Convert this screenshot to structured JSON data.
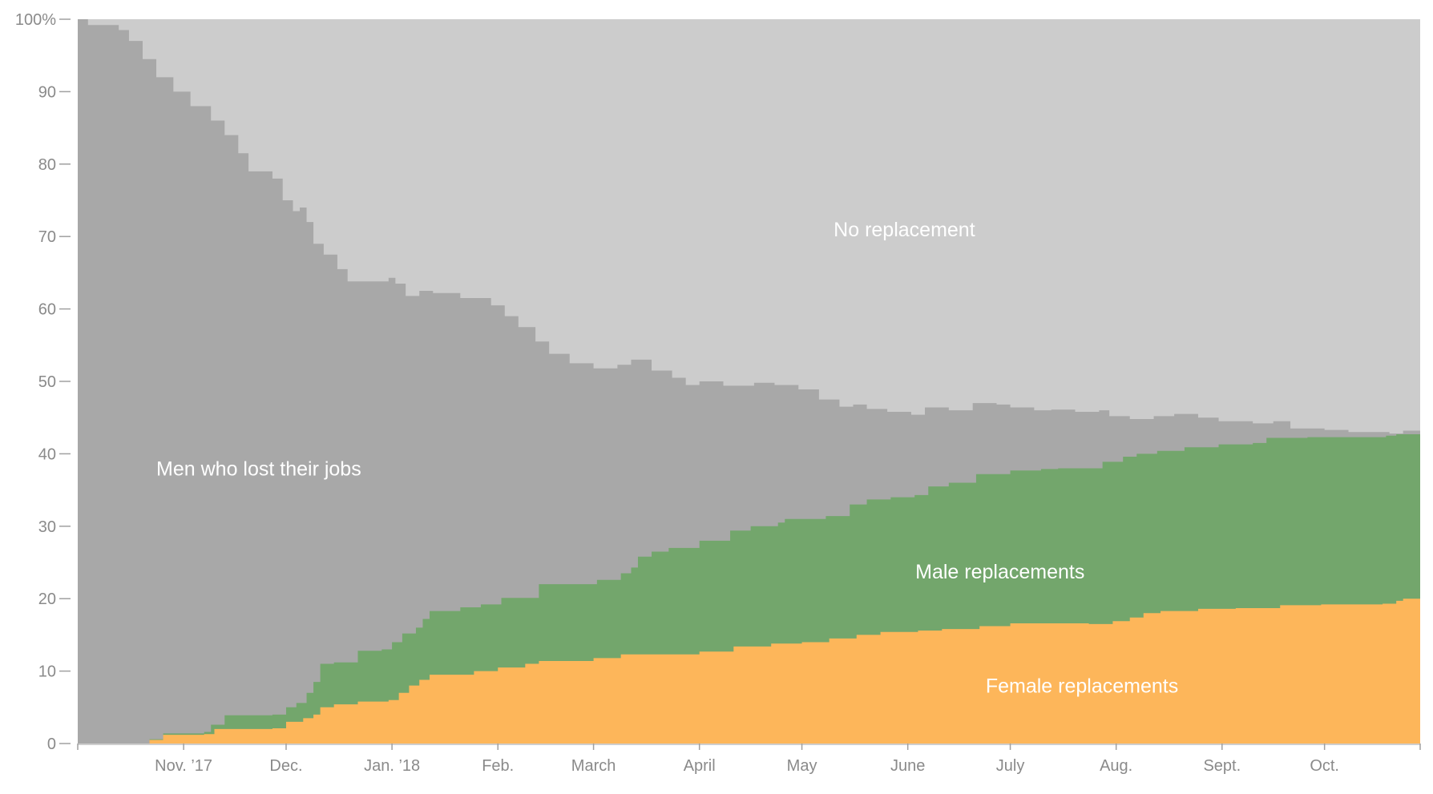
{
  "chart_data": {
    "type": "area",
    "stacked": true,
    "normalized_percent": true,
    "title": "",
    "xlabel": "",
    "ylabel": "",
    "ylim": [
      0,
      100
    ],
    "x_range": [
      "2017-10-01",
      "2018-10-29"
    ],
    "y_ticks": [
      0,
      10,
      20,
      30,
      40,
      50,
      60,
      70,
      80,
      90,
      100
    ],
    "y_tick_labels": [
      "0",
      "10",
      "20",
      "30",
      "40",
      "50",
      "60",
      "70",
      "80",
      "90",
      "100%"
    ],
    "x_ticks": [
      {
        "date": "2017-11-01",
        "label": "Nov. ’17"
      },
      {
        "date": "2017-12-01",
        "label": "Dec."
      },
      {
        "date": "2018-01-01",
        "label": "Jan. ’18"
      },
      {
        "date": "2018-02-01",
        "label": "Feb."
      },
      {
        "date": "2018-03-01",
        "label": "March"
      },
      {
        "date": "2018-04-01",
        "label": "April"
      },
      {
        "date": "2018-05-01",
        "label": "May"
      },
      {
        "date": "2018-06-01",
        "label": "June"
      },
      {
        "date": "2018-07-01",
        "label": "July"
      },
      {
        "date": "2018-08-01",
        "label": "Aug."
      },
      {
        "date": "2018-09-01",
        "label": "Sept."
      },
      {
        "date": "2018-10-01",
        "label": "Oct."
      }
    ],
    "series": [
      {
        "name": "Female replacements",
        "color": "#fdb65a",
        "points": [
          [
            "2017-10-01",
            0
          ],
          [
            "2017-10-15",
            0
          ],
          [
            "2017-10-22",
            0.5
          ],
          [
            "2017-10-26",
            1.2
          ],
          [
            "2017-11-07",
            1.3
          ],
          [
            "2017-11-10",
            2.0
          ],
          [
            "2017-11-27",
            2.1
          ],
          [
            "2017-12-01",
            3.0
          ],
          [
            "2017-12-06",
            3.5
          ],
          [
            "2017-12-09",
            4.0
          ],
          [
            "2017-12-11",
            5.0
          ],
          [
            "2017-12-15",
            5.4
          ],
          [
            "2017-12-22",
            5.8
          ],
          [
            "2017-12-31",
            6.0
          ],
          [
            "2018-01-03",
            7.0
          ],
          [
            "2018-01-06",
            8.0
          ],
          [
            "2018-01-09",
            8.8
          ],
          [
            "2018-01-12",
            9.5
          ],
          [
            "2018-01-25",
            10.0
          ],
          [
            "2018-02-01",
            10.5
          ],
          [
            "2018-02-09",
            11.0
          ],
          [
            "2018-02-13",
            11.4
          ],
          [
            "2018-03-01",
            11.8
          ],
          [
            "2018-03-09",
            12.3
          ],
          [
            "2018-04-01",
            12.7
          ],
          [
            "2018-04-11",
            13.4
          ],
          [
            "2018-04-22",
            13.8
          ],
          [
            "2018-05-01",
            14.0
          ],
          [
            "2018-05-09",
            14.5
          ],
          [
            "2018-05-17",
            15.0
          ],
          [
            "2018-05-24",
            15.4
          ],
          [
            "2018-06-04",
            15.6
          ],
          [
            "2018-06-11",
            15.8
          ],
          [
            "2018-06-22",
            16.2
          ],
          [
            "2018-07-01",
            16.6
          ],
          [
            "2018-07-10",
            16.6
          ],
          [
            "2018-07-24",
            16.5
          ],
          [
            "2018-07-31",
            16.9
          ],
          [
            "2018-08-05",
            17.4
          ],
          [
            "2018-08-09",
            18.0
          ],
          [
            "2018-08-14",
            18.3
          ],
          [
            "2018-08-25",
            18.6
          ],
          [
            "2018-09-05",
            18.7
          ],
          [
            "2018-09-18",
            19.1
          ],
          [
            "2018-09-30",
            19.2
          ],
          [
            "2018-10-18",
            19.3
          ],
          [
            "2018-10-22",
            19.7
          ],
          [
            "2018-10-24",
            20.0
          ],
          [
            "2018-10-29",
            20.0
          ]
        ]
      },
      {
        "name": "Male replacements",
        "color": "#73a66c",
        "points": [
          [
            "2017-10-01",
            0
          ],
          [
            "2017-10-15",
            0
          ],
          [
            "2017-10-22",
            0.6
          ],
          [
            "2017-10-26",
            1.4
          ],
          [
            "2017-11-07",
            1.6
          ],
          [
            "2017-11-09",
            2.6
          ],
          [
            "2017-11-13",
            3.9
          ],
          [
            "2017-11-27",
            4.0
          ],
          [
            "2017-12-01",
            5.0
          ],
          [
            "2017-12-04",
            5.6
          ],
          [
            "2017-12-07",
            7.0
          ],
          [
            "2017-12-09",
            8.5
          ],
          [
            "2017-12-11",
            11.0
          ],
          [
            "2017-12-15",
            11.2
          ],
          [
            "2017-12-22",
            12.8
          ],
          [
            "2017-12-29",
            13.0
          ],
          [
            "2018-01-01",
            14.0
          ],
          [
            "2018-01-04",
            15.2
          ],
          [
            "2018-01-08",
            16.0
          ],
          [
            "2018-01-10",
            17.2
          ],
          [
            "2018-01-12",
            18.3
          ],
          [
            "2018-01-21",
            18.8
          ],
          [
            "2018-01-27",
            19.2
          ],
          [
            "2018-02-02",
            20.1
          ],
          [
            "2018-02-13",
            22.0
          ],
          [
            "2018-02-22",
            22.0
          ],
          [
            "2018-03-02",
            22.6
          ],
          [
            "2018-03-09",
            23.5
          ],
          [
            "2018-03-12",
            24.3
          ],
          [
            "2018-03-14",
            25.8
          ],
          [
            "2018-03-18",
            26.5
          ],
          [
            "2018-03-23",
            27.0
          ],
          [
            "2018-04-01",
            28.0
          ],
          [
            "2018-04-10",
            29.4
          ],
          [
            "2018-04-16",
            30.0
          ],
          [
            "2018-04-24",
            30.5
          ],
          [
            "2018-04-26",
            31.0
          ],
          [
            "2018-05-08",
            31.4
          ],
          [
            "2018-05-15",
            33.0
          ],
          [
            "2018-05-20",
            33.7
          ],
          [
            "2018-05-27",
            34.0
          ],
          [
            "2018-06-03",
            34.3
          ],
          [
            "2018-06-07",
            35.5
          ],
          [
            "2018-06-13",
            36.0
          ],
          [
            "2018-06-21",
            37.2
          ],
          [
            "2018-07-01",
            37.7
          ],
          [
            "2018-07-10",
            37.9
          ],
          [
            "2018-07-15",
            38.0
          ],
          [
            "2018-07-28",
            38.9
          ],
          [
            "2018-08-03",
            39.6
          ],
          [
            "2018-08-07",
            40.0
          ],
          [
            "2018-08-13",
            40.4
          ],
          [
            "2018-08-21",
            40.9
          ],
          [
            "2018-08-31",
            41.3
          ],
          [
            "2018-09-10",
            41.5
          ],
          [
            "2018-09-14",
            42.2
          ],
          [
            "2018-09-26",
            42.3
          ],
          [
            "2018-10-12",
            42.3
          ],
          [
            "2018-10-19",
            42.5
          ],
          [
            "2018-10-22",
            42.7
          ],
          [
            "2018-10-29",
            42.8
          ]
        ]
      },
      {
        "name": "Men who lost their jobs",
        "color": "#a8a8a8",
        "points": [
          [
            "2017-10-01",
            100
          ],
          [
            "2017-10-04",
            99.2
          ],
          [
            "2017-10-13",
            98.5
          ],
          [
            "2017-10-16",
            97.0
          ],
          [
            "2017-10-20",
            94.5
          ],
          [
            "2017-10-24",
            92.0
          ],
          [
            "2017-10-29",
            90.0
          ],
          [
            "2017-11-03",
            88.0
          ],
          [
            "2017-11-09",
            86.0
          ],
          [
            "2017-11-13",
            84.0
          ],
          [
            "2017-11-17",
            81.5
          ],
          [
            "2017-11-20",
            79.0
          ],
          [
            "2017-11-27",
            78.0
          ],
          [
            "2017-11-30",
            75.0
          ],
          [
            "2017-12-03",
            73.5
          ],
          [
            "2017-12-05",
            74.0
          ],
          [
            "2017-12-07",
            72.0
          ],
          [
            "2017-12-09",
            69.0
          ],
          [
            "2017-12-12",
            67.5
          ],
          [
            "2017-12-16",
            65.5
          ],
          [
            "2017-12-19",
            63.8
          ],
          [
            "2017-12-31",
            64.3
          ],
          [
            "2018-01-02",
            63.5
          ],
          [
            "2018-01-05",
            61.8
          ],
          [
            "2018-01-09",
            62.5
          ],
          [
            "2018-01-13",
            62.2
          ],
          [
            "2018-01-21",
            61.5
          ],
          [
            "2018-01-30",
            60.5
          ],
          [
            "2018-02-03",
            59.0
          ],
          [
            "2018-02-07",
            57.5
          ],
          [
            "2018-02-12",
            55.5
          ],
          [
            "2018-02-16",
            53.8
          ],
          [
            "2018-02-22",
            52.5
          ],
          [
            "2018-03-01",
            51.8
          ],
          [
            "2018-03-08",
            52.3
          ],
          [
            "2018-03-12",
            53.0
          ],
          [
            "2018-03-18",
            51.5
          ],
          [
            "2018-03-24",
            50.5
          ],
          [
            "2018-03-28",
            49.5
          ],
          [
            "2018-04-01",
            50.0
          ],
          [
            "2018-04-08",
            49.4
          ],
          [
            "2018-04-17",
            49.8
          ],
          [
            "2018-04-23",
            49.5
          ],
          [
            "2018-04-30",
            48.9
          ],
          [
            "2018-05-06",
            47.5
          ],
          [
            "2018-05-12",
            46.5
          ],
          [
            "2018-05-16",
            46.8
          ],
          [
            "2018-05-20",
            46.2
          ],
          [
            "2018-05-26",
            45.8
          ],
          [
            "2018-06-02",
            45.4
          ],
          [
            "2018-06-06",
            46.4
          ],
          [
            "2018-06-13",
            46.0
          ],
          [
            "2018-06-20",
            47.0
          ],
          [
            "2018-06-27",
            46.8
          ],
          [
            "2018-07-01",
            46.4
          ],
          [
            "2018-07-08",
            46.0
          ],
          [
            "2018-07-13",
            46.1
          ],
          [
            "2018-07-20",
            45.8
          ],
          [
            "2018-07-27",
            46.0
          ],
          [
            "2018-07-30",
            45.2
          ],
          [
            "2018-08-05",
            44.8
          ],
          [
            "2018-08-12",
            45.2
          ],
          [
            "2018-08-18",
            45.5
          ],
          [
            "2018-08-25",
            45.0
          ],
          [
            "2018-08-31",
            44.5
          ],
          [
            "2018-09-10",
            44.2
          ],
          [
            "2018-09-16",
            44.5
          ],
          [
            "2018-09-21",
            43.5
          ],
          [
            "2018-10-01",
            43.3
          ],
          [
            "2018-10-08",
            43.0
          ],
          [
            "2018-10-20",
            42.8
          ],
          [
            "2018-10-24",
            43.2
          ],
          [
            "2018-10-29",
            43.1
          ]
        ]
      },
      {
        "name": "No replacement",
        "color": "#cccccc",
        "points": [
          [
            "2017-10-01",
            100
          ],
          [
            "2018-10-29",
            100
          ]
        ]
      }
    ],
    "annotations": [
      {
        "text": "No replacement",
        "x": "2018-05-31",
        "y": 71
      },
      {
        "text": "Men who lost their jobs",
        "x": "2017-11-23",
        "y": 38
      },
      {
        "text": "Male replacements",
        "x": "2018-06-28",
        "y": 23.8
      },
      {
        "text": "Female replacements",
        "x": "2018-07-22",
        "y": 8
      }
    ]
  }
}
